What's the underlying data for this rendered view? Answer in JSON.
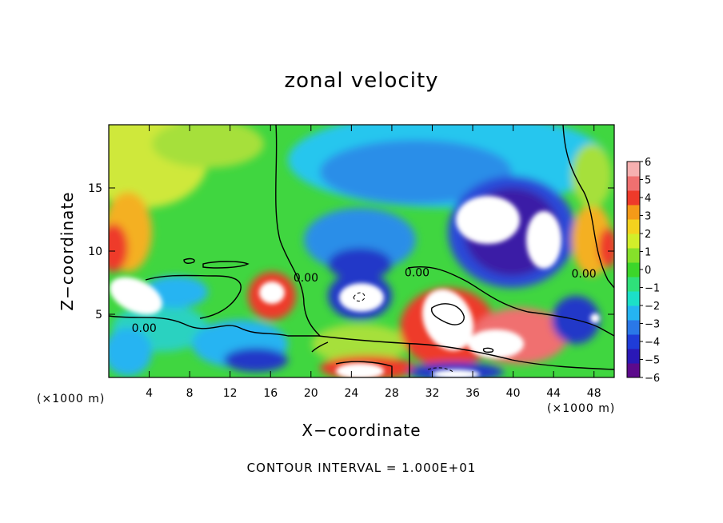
{
  "chart_data": {
    "type": "heatmap",
    "title": "zonal velocity",
    "xlabel": "X−coordinate",
    "ylabel": "Z−coordinate",
    "x_unit": "(×1000 m)",
    "y_unit": "(×1000 m)",
    "xlim": [
      0,
      50
    ],
    "ylim": [
      0,
      20
    ],
    "x_ticks": [
      4,
      8,
      12,
      16,
      20,
      24,
      28,
      32,
      36,
      40,
      44,
      48
    ],
    "y_ticks": [
      5,
      10,
      15
    ],
    "colorbar": {
      "min": -6,
      "max": 6,
      "ticks": [
        6,
        5,
        4,
        3,
        2,
        1,
        0,
        -1,
        -2,
        -3,
        -4,
        -5,
        -6
      ],
      "tick_labels": [
        "6",
        "5",
        "4",
        "3",
        "2",
        "1",
        "0",
        "−1",
        "−2",
        "−3",
        "−4",
        "−5",
        "−6"
      ],
      "colors": [
        "#5c0a8c",
        "#2a18b6",
        "#1f3cd8",
        "#2a78e8",
        "#25b4f2",
        "#1ce0c8",
        "#2fe07a",
        "#3cd62a",
        "#86e02a",
        "#d2ee2a",
        "#f4d21e",
        "#f49a18",
        "#ee3a2a",
        "#f07070",
        "#f6b0b0"
      ]
    },
    "contour_label": "0.00",
    "contour_labels": [
      {
        "x": 3.5,
        "z": 3.6,
        "text": "0.00"
      },
      {
        "x": 19.5,
        "z": 7.6,
        "text": "0.00"
      },
      {
        "x": 30.5,
        "z": 8.0,
        "text": "0.00"
      },
      {
        "x": 47.0,
        "z": 7.9,
        "text": "0.00"
      }
    ],
    "footnote": "CONTOUR INTERVAL = 1.000E+01"
  }
}
